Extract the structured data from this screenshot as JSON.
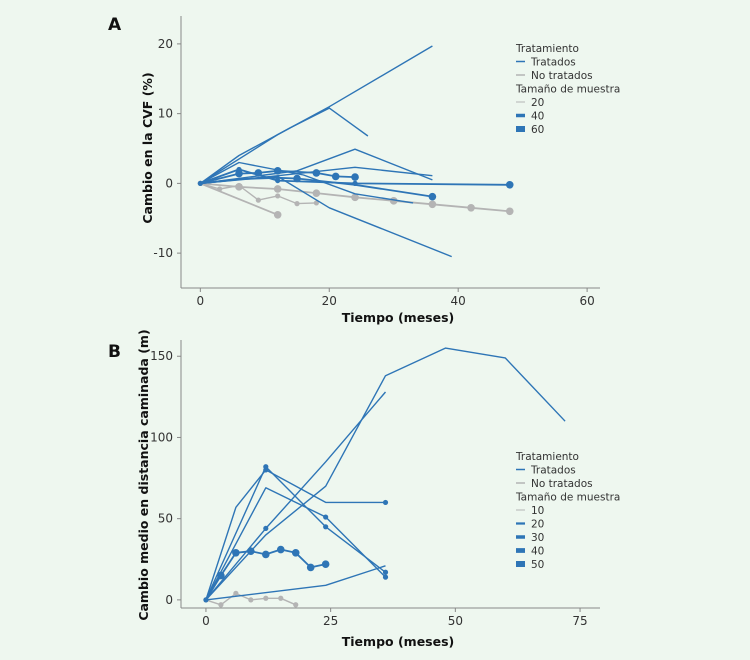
{
  "colors": {
    "treated": "#2e75b6",
    "untreated": "#b4b4b4",
    "axis": "#888888",
    "background": "#eef7ef"
  },
  "chart_data": [
    {
      "panel": "A",
      "type": "line",
      "xlabel": "Tiempo (meses)",
      "ylabel": "Cambio en la CVF (%)",
      "xlim": [
        -3,
        62
      ],
      "ylim": [
        -15,
        24
      ],
      "xticks": [
        0,
        20,
        40,
        60
      ],
      "yticks": [
        -10,
        0,
        10,
        20
      ],
      "legend": {
        "position": "right",
        "treatment_title": "Tratamiento",
        "treated_label": "Tratados",
        "untreated_label": "No tratados",
        "size_title": "Tamaño de muestra",
        "sizes": [
          "20",
          "40",
          "60"
        ]
      },
      "series": [
        {
          "group": "treated",
          "points": [
            [
              0,
              0
            ],
            [
              12,
              7
            ],
            [
              20,
              11
            ],
            [
              36,
              19.7
            ]
          ]
        },
        {
          "group": "treated",
          "points": [
            [
              0,
              0
            ],
            [
              6,
              4
            ],
            [
              14,
              8
            ],
            [
              20,
              10.8
            ],
            [
              26,
              6.8
            ]
          ]
        },
        {
          "group": "treated",
          "points": [
            [
              0,
              0
            ],
            [
              12,
              1
            ],
            [
              20,
              -3.5
            ],
            [
              39,
              -10.5
            ]
          ]
        },
        {
          "group": "treated",
          "points": [
            [
              0,
              0
            ],
            [
              11,
              1
            ],
            [
              24,
              2.3
            ],
            [
              36,
              1.1
            ]
          ]
        },
        {
          "group": "treated",
          "points": [
            [
              0,
              0
            ],
            [
              10,
              1.2
            ],
            [
              15,
              1.8
            ],
            [
              24,
              4.9
            ],
            [
              36,
              0.5
            ]
          ]
        },
        {
          "group": "treated",
          "points": [
            [
              0,
              0
            ],
            [
              6,
              3
            ],
            [
              16,
              1.2
            ],
            [
              24,
              -1.5
            ],
            [
              33,
              -2.8
            ]
          ]
        },
        {
          "group": "treated",
          "points": [
            [
              0,
              0
            ],
            [
              6,
              2
            ],
            [
              12,
              0.4
            ],
            [
              24,
              0
            ],
            [
              48,
              -0.2
            ]
          ],
          "markers": [
            1,
            1,
            1,
            1,
            2
          ],
          "marker_size": 2
        },
        {
          "group": "treated",
          "points": [
            [
              0,
              0
            ],
            [
              6,
              1.4
            ],
            [
              9,
              1.5
            ],
            [
              12,
              1.8
            ],
            [
              18,
              1.5
            ],
            [
              21,
              1
            ],
            [
              24,
              0.9
            ]
          ],
          "markers": [
            0,
            2,
            2,
            2,
            2,
            2,
            2
          ],
          "marker_size": 2
        },
        {
          "group": "treated",
          "points": [
            [
              0,
              0
            ],
            [
              6,
              0.6
            ],
            [
              12,
              0.8
            ],
            [
              15,
              0.7
            ],
            [
              24,
              -0.2
            ],
            [
              36,
              -1.9
            ]
          ],
          "markers": [
            0,
            0,
            0,
            2,
            0,
            2
          ],
          "marker_size": 2
        },
        {
          "group": "untreated",
          "points": [
            [
              0,
              0
            ],
            [
              6,
              -0.5
            ],
            [
              12,
              -0.8
            ],
            [
              18,
              -1.4
            ],
            [
              24,
              -2
            ],
            [
              30,
              -2.5
            ],
            [
              36,
              -3
            ],
            [
              42,
              -3.5
            ],
            [
              48,
              -4
            ]
          ],
          "markers": [
            1,
            2,
            2,
            2,
            2,
            2,
            2,
            2,
            2
          ],
          "marker_size": 2
        },
        {
          "group": "untreated",
          "points": [
            [
              0,
              0
            ],
            [
              3,
              -0.8
            ],
            [
              6,
              -0.3
            ],
            [
              9,
              -2.4
            ],
            [
              12,
              -1.8
            ],
            [
              15,
              -2.9
            ],
            [
              18,
              -2.8
            ]
          ],
          "markers": [
            1,
            1,
            1,
            1,
            1,
            1,
            1
          ],
          "marker_size": 1
        },
        {
          "group": "untreated",
          "points": [
            [
              0,
              0
            ],
            [
              12,
              -4.5
            ]
          ],
          "markers": [
            1,
            2
          ],
          "marker_size": 2
        }
      ]
    },
    {
      "panel": "B",
      "type": "line",
      "xlabel": "Tiempo (meses)",
      "ylabel": "Cambio medio en distancia caminada (m)",
      "xlim": [
        -5,
        79
      ],
      "ylim": [
        -5,
        160
      ],
      "xticks": [
        0,
        25,
        50,
        75
      ],
      "yticks": [
        0,
        50,
        100,
        150
      ],
      "legend": {
        "position": "right",
        "treatment_title": "Tratamiento",
        "treated_label": "Tratados",
        "untreated_label": "No tratados",
        "size_title": "Tamaño de muestra",
        "sizes": [
          "10",
          "20",
          "30",
          "40",
          "50"
        ]
      },
      "series": [
        {
          "group": "treated",
          "points": [
            [
              0,
              0
            ],
            [
              12,
              40
            ],
            [
              24,
              70
            ],
            [
              36,
              138
            ],
            [
              48,
              155
            ],
            [
              60,
              149
            ],
            [
              72,
              110
            ]
          ]
        },
        {
          "group": "treated",
          "points": [
            [
              0,
              0
            ],
            [
              6,
              57
            ],
            [
              12,
              80
            ],
            [
              24,
              60
            ],
            [
              36,
              60
            ]
          ],
          "markers": [
            0,
            0,
            1,
            0,
            1
          ],
          "marker_size": 1
        },
        {
          "group": "treated",
          "points": [
            [
              0,
              0
            ],
            [
              12,
              69
            ],
            [
              24,
              51
            ],
            [
              36,
              14
            ]
          ],
          "markers": [
            0,
            0,
            1,
            1
          ],
          "marker_size": 1
        },
        {
          "group": "treated",
          "points": [
            [
              0,
              0
            ],
            [
              12,
              82
            ],
            [
              24,
              45
            ],
            [
              36,
              17
            ]
          ],
          "markers": [
            0,
            1,
            1,
            1
          ],
          "marker_size": 1
        },
        {
          "group": "treated",
          "points": [
            [
              0,
              0
            ],
            [
              12,
              44
            ],
            [
              24,
              85
            ],
            [
              36,
              128
            ]
          ],
          "markers": [
            0,
            1,
            0,
            0
          ],
          "marker_size": 1
        },
        {
          "group": "treated",
          "points": [
            [
              0,
              0
            ],
            [
              24,
              9
            ],
            [
              36,
              21
            ]
          ]
        },
        {
          "group": "treated",
          "points": [
            [
              0,
              0
            ],
            [
              3,
              15
            ],
            [
              6,
              29
            ],
            [
              9,
              30
            ],
            [
              12,
              28
            ],
            [
              15,
              31
            ],
            [
              18,
              29
            ],
            [
              21,
              20
            ],
            [
              24,
              22
            ]
          ],
          "markers": [
            1,
            2,
            2,
            2,
            2,
            2,
            2,
            2,
            2
          ],
          "marker_size": 2
        },
        {
          "group": "untreated",
          "points": [
            [
              0,
              0
            ],
            [
              3,
              -3
            ],
            [
              6,
              4
            ],
            [
              9,
              0
            ],
            [
              12,
              1
            ],
            [
              15,
              1
            ],
            [
              18,
              -3
            ]
          ],
          "markers": [
            1,
            1,
            1,
            1,
            1,
            1,
            1
          ],
          "marker_size": 1
        }
      ]
    }
  ]
}
